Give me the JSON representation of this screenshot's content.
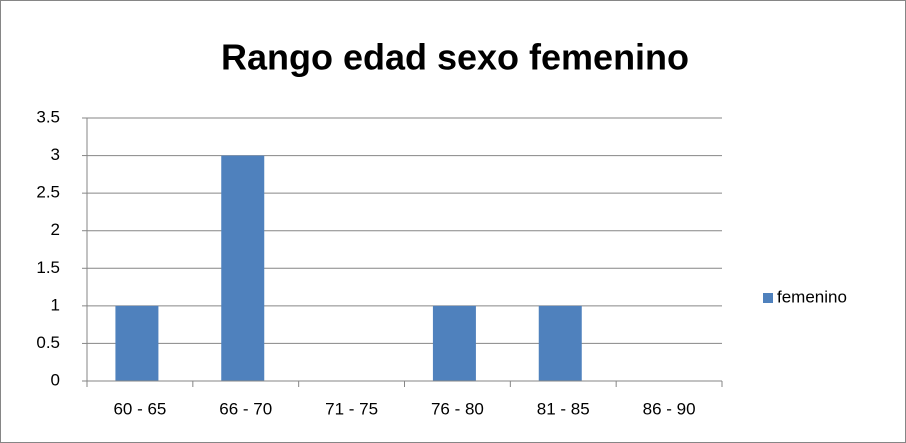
{
  "chart_data": {
    "type": "bar",
    "title": "Rango edad sexo femenino",
    "categories": [
      "60 - 65",
      "66 - 70",
      "71 - 75",
      "76 - 80",
      "81 - 85",
      "86 - 90"
    ],
    "series": [
      {
        "name": "femenino",
        "color": "#4f81bd",
        "values": [
          1,
          3,
          0,
          1,
          1,
          0
        ]
      }
    ],
    "ylim": [
      0,
      3.5
    ],
    "yticks": [
      0,
      0.5,
      1,
      1.5,
      2,
      2.5,
      3,
      3.5
    ],
    "grid": true,
    "legend": "right"
  }
}
